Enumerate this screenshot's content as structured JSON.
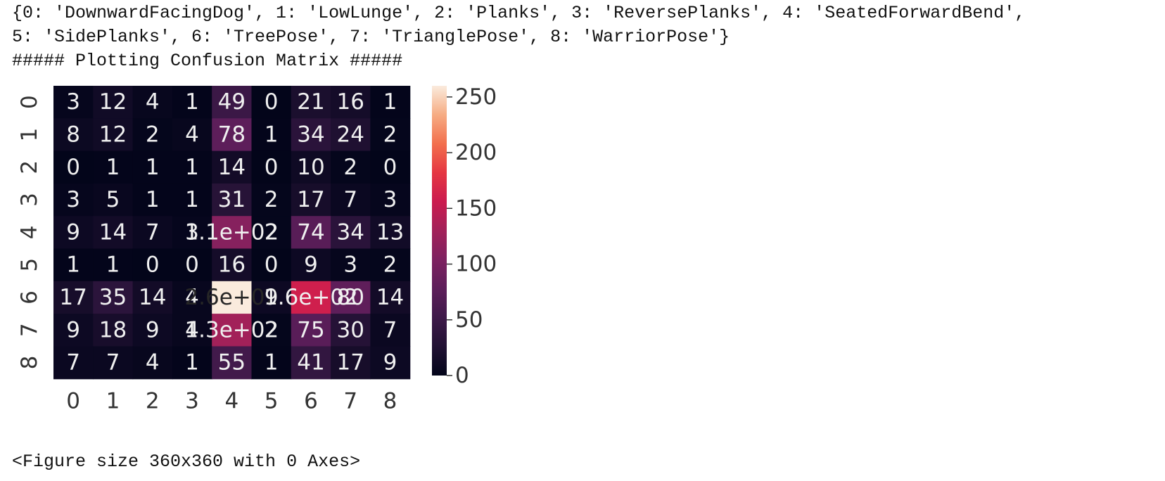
{
  "output": {
    "line1": "{0: 'DownwardFacingDog', 1: 'LowLunge', 2: 'Planks', 3: 'ReversePlanks', 4: 'SeatedForwardBend',",
    "line2": "5: 'SidePlanks', 6: 'TreePose', 7: 'TrianglePose', 8: 'WarriorPose'}",
    "line3": "##### Plotting Confusion Matrix #####",
    "footer": "<Figure size 360x360 with 0 Axes>"
  },
  "chart_data": {
    "type": "heatmap",
    "colormap": "rocket",
    "rows": [
      "0",
      "1",
      "2",
      "3",
      "4",
      "5",
      "6",
      "7",
      "8"
    ],
    "columns": [
      "0",
      "1",
      "2",
      "3",
      "4",
      "5",
      "6",
      "7",
      "8"
    ],
    "values": [
      [
        3,
        12,
        4,
        1,
        49,
        0,
        21,
        16,
        1
      ],
      [
        8,
        12,
        2,
        4,
        78,
        1,
        34,
        24,
        2
      ],
      [
        0,
        1,
        1,
        1,
        14,
        0,
        10,
        2,
        0
      ],
      [
        3,
        5,
        1,
        1,
        31,
        2,
        17,
        7,
        3
      ],
      [
        9,
        14,
        7,
        3,
        110,
        2,
        74,
        34,
        13
      ],
      [
        1,
        1,
        0,
        0,
        16,
        0,
        9,
        3,
        2
      ],
      [
        17,
        35,
        14,
        4,
        260,
        9,
        160,
        80,
        14
      ],
      [
        9,
        18,
        9,
        4,
        130,
        2,
        75,
        30,
        7
      ],
      [
        7,
        7,
        4,
        1,
        55,
        1,
        41,
        17,
        9
      ]
    ],
    "annotations": [
      [
        "3",
        "12",
        "4",
        "1",
        "49",
        "0",
        "21",
        "16",
        "1"
      ],
      [
        "8",
        "12",
        "2",
        "4",
        "78",
        "1",
        "34",
        "24",
        "2"
      ],
      [
        "0",
        "1",
        "1",
        "1",
        "14",
        "0",
        "10",
        "2",
        "0"
      ],
      [
        "3",
        "5",
        "1",
        "1",
        "31",
        "2",
        "17",
        "7",
        "3"
      ],
      [
        "9",
        "14",
        "7",
        "3",
        "1.1e+02",
        "2",
        "74",
        "34",
        "13"
      ],
      [
        "1",
        "1",
        "0",
        "0",
        "16",
        "0",
        "9",
        "3",
        "2"
      ],
      [
        "17",
        "35",
        "14",
        "4",
        "2.6e+02",
        "9",
        "1.6e+02",
        "80",
        "14"
      ],
      [
        "9",
        "18",
        "9",
        "4",
        "1.3e+02",
        "2",
        "75",
        "30",
        "7"
      ],
      [
        "7",
        "7",
        "4",
        "1",
        "55",
        "1",
        "41",
        "17",
        "9"
      ]
    ],
    "colorbar": {
      "range": [
        0,
        260
      ],
      "ticks": [
        0,
        50,
        100,
        150,
        200,
        250
      ]
    },
    "title": "",
    "xlabel": "",
    "ylabel": ""
  }
}
